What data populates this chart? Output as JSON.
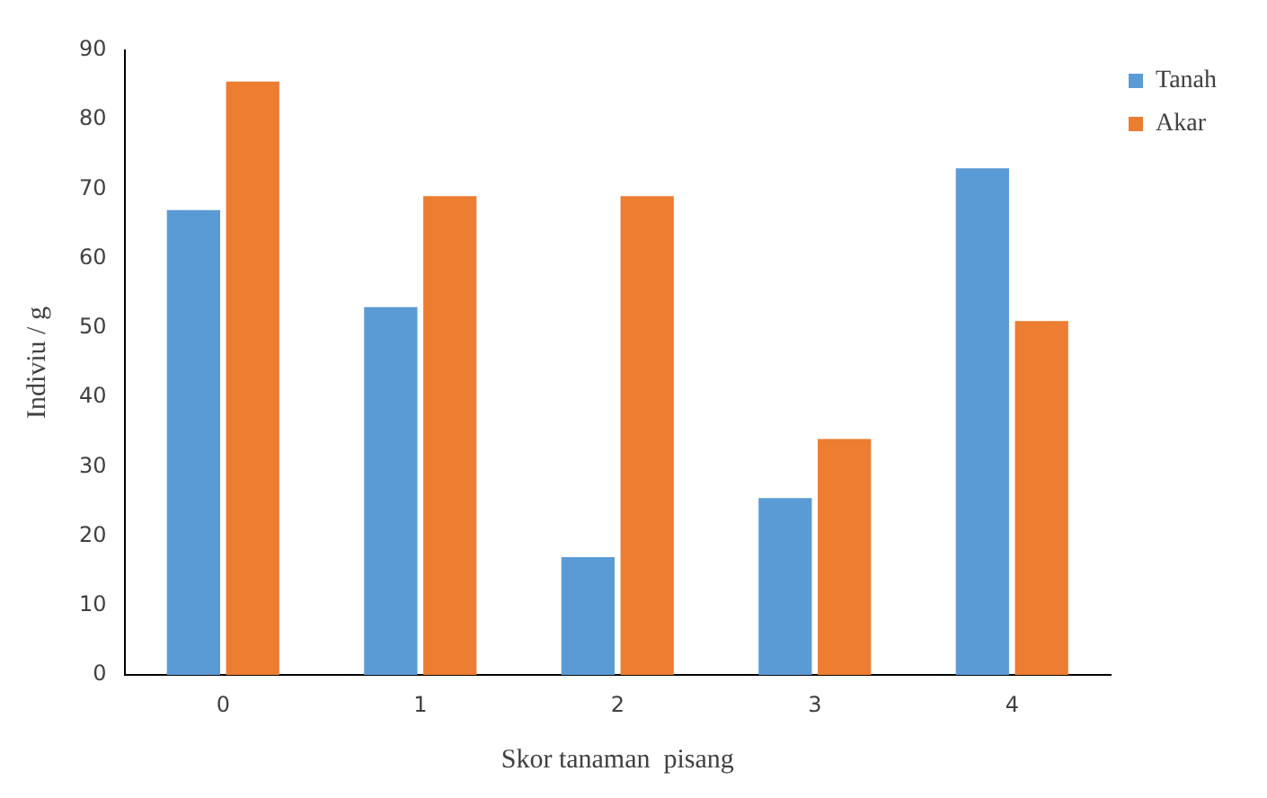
{
  "chart_data": {
    "type": "bar",
    "xlabel": "Skor tanaman  pisang",
    "ylabel": "Indiviu / g",
    "categories": [
      "0",
      "1",
      "2",
      "3",
      "4"
    ],
    "series": [
      {
        "name": "Tanah",
        "color": "#5b9bd5",
        "values": [
          67,
          53,
          17,
          25.5,
          73
        ]
      },
      {
        "name": "Akar",
        "color": "#ed7d31",
        "values": [
          85.5,
          69,
          69,
          34,
          51
        ]
      }
    ],
    "ylim": [
      0,
      90
    ],
    "yticks": [
      0,
      10,
      20,
      30,
      40,
      50,
      60,
      70,
      80,
      90
    ],
    "grid": false,
    "legend": "top right"
  }
}
